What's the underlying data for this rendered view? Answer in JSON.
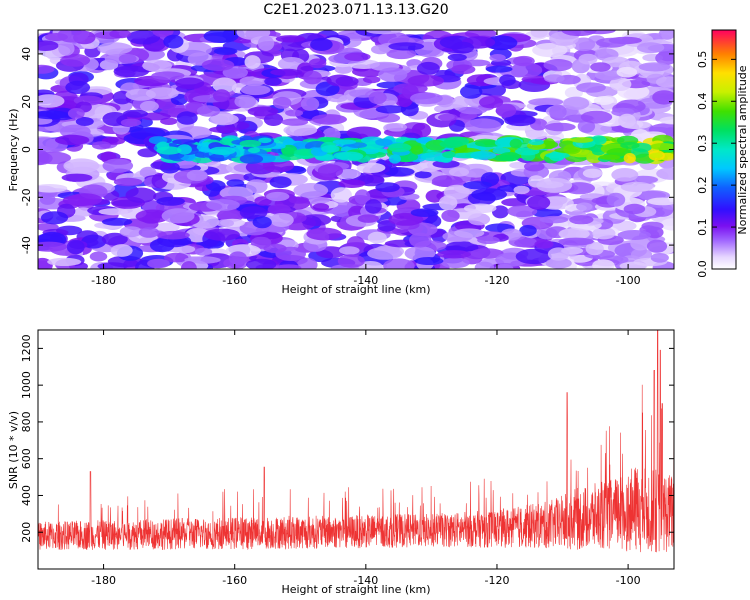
{
  "title": "C2E1.2023.071.13.13.G20",
  "chart_data": [
    {
      "type": "heatmap",
      "xlabel": "Height of straight line (km)",
      "ylabel": "Frequency (Hz)",
      "xlim": [
        -190,
        -93
      ],
      "ylim": [
        -50,
        50
      ],
      "x_ticks": [
        -180,
        -160,
        -140,
        -120,
        -100
      ],
      "y_ticks": [
        -40,
        -20,
        0,
        20,
        40
      ],
      "colorbar": {
        "label": "Normalized spectral amplitude",
        "range": [
          0,
          0.57
        ],
        "ticks": [
          0.0,
          0.1,
          0.2,
          0.3,
          0.4,
          0.5
        ],
        "tick_labels": [
          "0.0",
          "0.1",
          "0.2",
          "0.3",
          "0.4",
          "0.5"
        ]
      },
      "signal_band": {
        "frequency": 0,
        "x_start": -172,
        "x_end": -93,
        "peak_amplitude": 0.5,
        "peak_x": -98
      }
    },
    {
      "type": "line",
      "xlabel": "Height of straight line (km)",
      "ylabel": "SNR (10 * v/v)",
      "xlim": [
        -190,
        -93
      ],
      "ylim": [
        0,
        1300
      ],
      "x_ticks": [
        -180,
        -160,
        -140,
        -120,
        -100
      ],
      "y_ticks": [
        200,
        400,
        600,
        800,
        1000,
        1200
      ],
      "color": "#ee3333",
      "profile": [
        {
          "x": -190,
          "base": 180,
          "amp": 120
        },
        {
          "x": -170,
          "base": 190,
          "amp": 130
        },
        {
          "x": -150,
          "base": 200,
          "amp": 140
        },
        {
          "x": -130,
          "base": 210,
          "amp": 140
        },
        {
          "x": -120,
          "base": 220,
          "amp": 160
        },
        {
          "x": -112,
          "base": 240,
          "amp": 200
        },
        {
          "x": -108,
          "base": 270,
          "amp": 260
        },
        {
          "x": -102,
          "base": 300,
          "amp": 300
        },
        {
          "x": -98,
          "base": 330,
          "amp": 380
        },
        {
          "x": -93,
          "base": 300,
          "amp": 330
        }
      ],
      "spikes": [
        {
          "x": -109.3,
          "y": 960
        },
        {
          "x": -95.5,
          "y": 1300
        },
        {
          "x": -95.1,
          "y": 1190
        },
        {
          "x": -96.0,
          "y": 1080
        },
        {
          "x": -94.8,
          "y": 900
        },
        {
          "x": -155.5,
          "y": 555
        },
        {
          "x": -182.0,
          "y": 530
        }
      ]
    }
  ]
}
